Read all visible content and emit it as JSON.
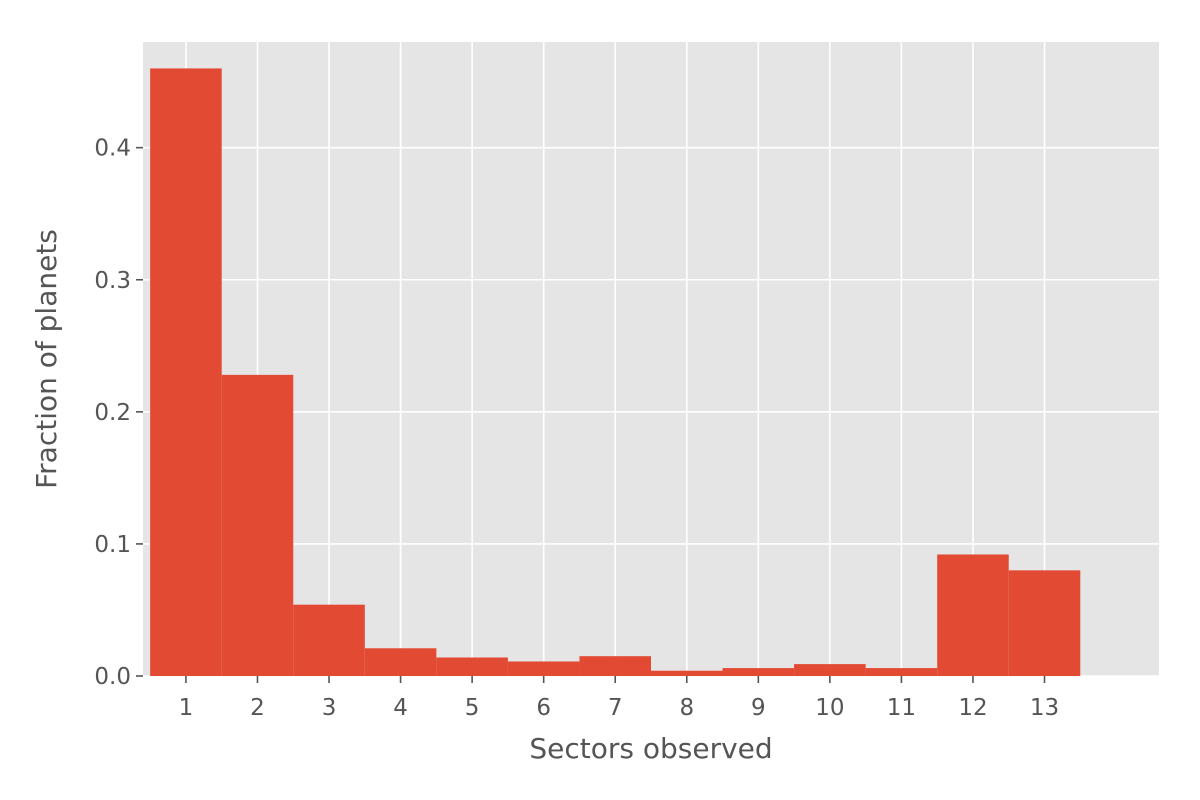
{
  "chart_data": {
    "type": "bar",
    "categories": [
      "1",
      "2",
      "3",
      "4",
      "5",
      "6",
      "7",
      "8",
      "9",
      "10",
      "11",
      "12",
      "13"
    ],
    "values": [
      0.46,
      0.228,
      0.054,
      0.021,
      0.014,
      0.011,
      0.015,
      0.004,
      0.006,
      0.009,
      0.006,
      0.092,
      0.08
    ],
    "title": "",
    "xlabel": "Sectors observed",
    "ylabel": "Fraction of planets",
    "ylim": [
      0.0,
      0.48
    ],
    "yticks": [
      "0.0",
      "0.1",
      "0.2",
      "0.3",
      "0.4"
    ],
    "xlim": [
      -0.6,
      13.6
    ],
    "grid": true,
    "colors": {
      "bar": "#E24A33",
      "background": "#E5E5E5",
      "grid": "#FFFFFF",
      "text": "#555555"
    }
  }
}
